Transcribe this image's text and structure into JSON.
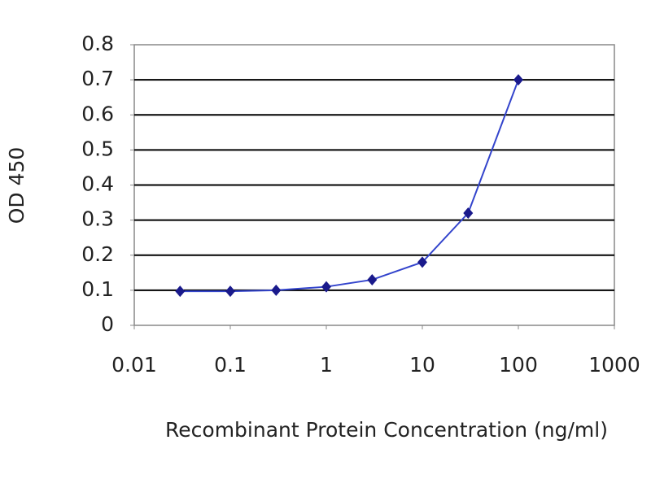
{
  "chart_data": {
    "type": "line",
    "x": [
      0.03,
      0.1,
      0.3,
      1,
      3,
      10,
      30,
      100
    ],
    "values": [
      0.097,
      0.097,
      0.1,
      0.11,
      0.13,
      0.18,
      0.32,
      0.7
    ],
    "color": "#1a1a8c",
    "x_log_scale": true,
    "xlim": [
      0.01,
      1000
    ],
    "xticks": [
      0.01,
      0.1,
      1,
      10,
      100,
      1000
    ],
    "ylim": [
      0,
      0.8
    ],
    "yticks": [
      0,
      0.1,
      0.2,
      0.3,
      0.4,
      0.5,
      0.6,
      0.7,
      0.8
    ],
    "grid": true,
    "x_label": "Recombinant Protein Concentration (ng/ml)",
    "y_label": "OD 450"
  }
}
